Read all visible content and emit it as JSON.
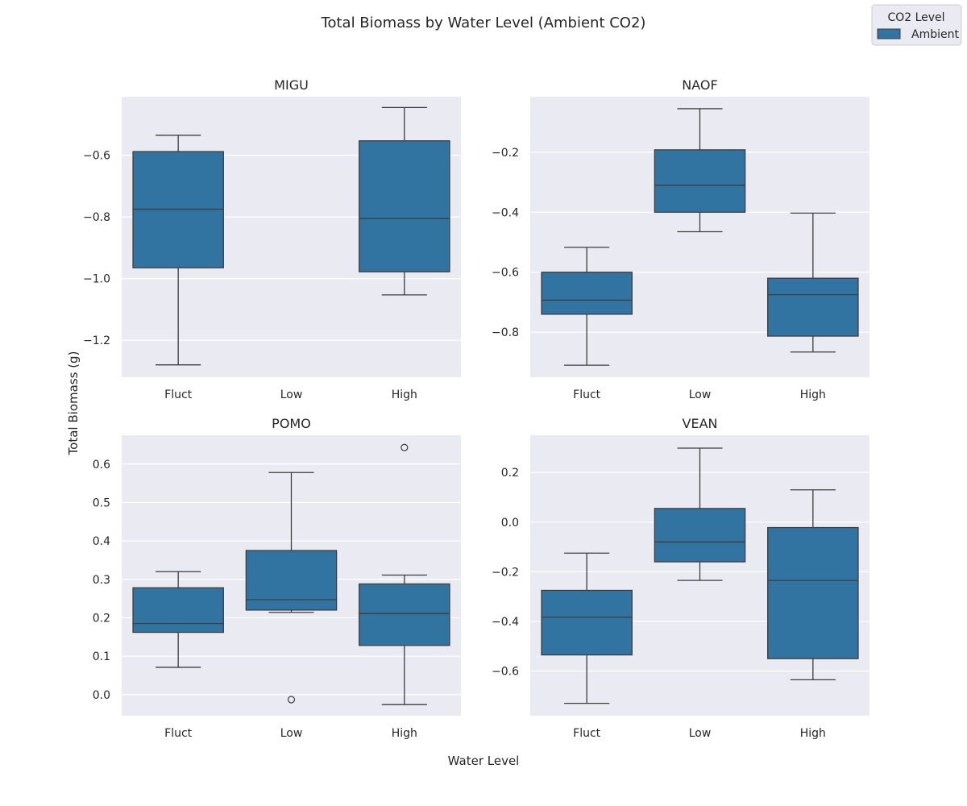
{
  "figure": {
    "title": "Total Biomass by Water Level (Ambient CO2)",
    "xlabel": "Water Level",
    "ylabel": "Total Biomass (g)"
  },
  "legend": {
    "title": "CO2 Level",
    "entries": [
      {
        "label": "Ambient",
        "color": "#3274a1"
      }
    ],
    "placement": "top-right"
  },
  "colors": {
    "box_fill": "#3274a1",
    "panel_background": "#eaeaf2",
    "grid": "#ffffff",
    "line": "#3d3d3d"
  },
  "chart_data": [
    {
      "type": "box",
      "title": "MIGU",
      "categories": [
        "Fluct",
        "Low",
        "High"
      ],
      "ylim": [
        -1.32,
        -0.41
      ],
      "yticks": [
        -1.2,
        -1.0,
        -0.8,
        -0.6
      ],
      "ytick_labels": [
        "−1.2",
        "−1.0",
        "−0.8",
        "−0.6"
      ],
      "grid": true,
      "boxes": [
        {
          "category": "Fluct",
          "whisker_low": -1.28,
          "q1": -0.965,
          "median": -0.775,
          "q3": -0.588,
          "whisker_high": -0.535,
          "outliers": []
        },
        {
          "category": "High",
          "whisker_low": -1.053,
          "q1": -0.978,
          "median": -0.805,
          "q3": -0.553,
          "whisker_high": -0.445,
          "outliers": []
        }
      ]
    },
    {
      "type": "box",
      "title": "NAOF",
      "categories": [
        "Fluct",
        "Low",
        "High"
      ],
      "ylim": [
        -0.95,
        -0.015
      ],
      "yticks": [
        -0.8,
        -0.6,
        -0.4,
        -0.2
      ],
      "ytick_labels": [
        "−0.8",
        "−0.6",
        "−0.4",
        "−0.2"
      ],
      "grid": true,
      "boxes": [
        {
          "category": "Fluct",
          "whisker_low": -0.91,
          "q1": -0.74,
          "median": -0.693,
          "q3": -0.6,
          "whisker_high": -0.517,
          "outliers": []
        },
        {
          "category": "Low",
          "whisker_low": -0.465,
          "q1": -0.4,
          "median": -0.31,
          "q3": -0.192,
          "whisker_high": -0.055,
          "outliers": []
        },
        {
          "category": "High",
          "whisker_low": -0.866,
          "q1": -0.813,
          "median": -0.675,
          "q3": -0.62,
          "whisker_high": -0.403,
          "outliers": []
        }
      ]
    },
    {
      "type": "box",
      "title": "POMO",
      "categories": [
        "Fluct",
        "Low",
        "High"
      ],
      "ylim": [
        -0.055,
        0.675
      ],
      "yticks": [
        0.0,
        0.1,
        0.2,
        0.3,
        0.4,
        0.5,
        0.6
      ],
      "ytick_labels": [
        "0.0",
        "0.1",
        "0.2",
        "0.3",
        "0.4",
        "0.5",
        "0.6"
      ],
      "grid": true,
      "boxes": [
        {
          "category": "Fluct",
          "whisker_low": 0.071,
          "q1": 0.162,
          "median": 0.185,
          "q3": 0.278,
          "whisker_high": 0.32,
          "outliers": []
        },
        {
          "category": "Low",
          "whisker_low": 0.214,
          "q1": 0.22,
          "median": 0.247,
          "q3": 0.375,
          "whisker_high": 0.578,
          "outliers": [
            -0.013
          ]
        },
        {
          "category": "High",
          "whisker_low": -0.026,
          "q1": 0.128,
          "median": 0.211,
          "q3": 0.288,
          "whisker_high": 0.311,
          "outliers": [
            0.643
          ]
        }
      ]
    },
    {
      "type": "box",
      "title": "VEAN",
      "categories": [
        "Fluct",
        "Low",
        "High"
      ],
      "ylim": [
        -0.78,
        0.35
      ],
      "yticks": [
        -0.6,
        -0.4,
        -0.2,
        0.0,
        0.2
      ],
      "ytick_labels": [
        "−0.6",
        "−0.4",
        "−0.2",
        "0.0",
        "0.2"
      ],
      "grid": true,
      "boxes": [
        {
          "category": "Fluct",
          "whisker_low": -0.73,
          "q1": -0.535,
          "median": -0.383,
          "q3": -0.275,
          "whisker_high": -0.125,
          "outliers": []
        },
        {
          "category": "Low",
          "whisker_low": -0.235,
          "q1": -0.16,
          "median": -0.08,
          "q3": 0.055,
          "whisker_high": 0.298,
          "outliers": []
        },
        {
          "category": "High",
          "whisker_low": -0.635,
          "q1": -0.55,
          "median": -0.235,
          "q3": -0.022,
          "whisker_high": 0.13,
          "outliers": []
        }
      ]
    }
  ]
}
